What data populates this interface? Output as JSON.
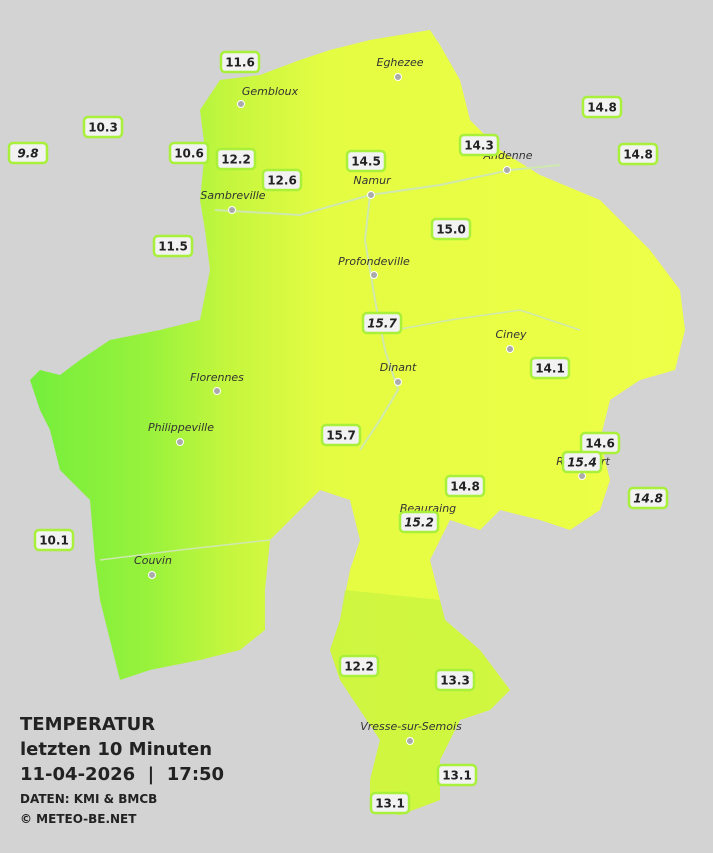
{
  "legend": {
    "title": "TEMPERATUR",
    "subtitle": "letzten 10 Minuten",
    "datetime": "11-04-2026  |  17:50",
    "source": "DATEN: KMI & BMCB",
    "credit": "© METEO-BE.NET"
  },
  "cities": [
    "Eghezee",
    "Gembloux",
    "Andenne",
    "Namur",
    "Sambreville",
    "Profondeville",
    "Ciney",
    "Dinant",
    "Florennes",
    "Philippeville",
    "Rochefort",
    "Beauraing",
    "Couvin",
    "Vresse-sur-Semois"
  ],
  "stations": [
    {
      "label": "11.6",
      "italic": false
    },
    {
      "label": "10.3",
      "italic": false
    },
    {
      "label": "9.8",
      "italic": true
    },
    {
      "label": "10.6",
      "italic": false
    },
    {
      "label": "12.2",
      "italic": false
    },
    {
      "label": "12.6",
      "italic": false
    },
    {
      "label": "14.5",
      "italic": false
    },
    {
      "label": "14.3",
      "italic": false
    },
    {
      "label": "14.8",
      "italic": false
    },
    {
      "label": "14.8",
      "italic": false
    },
    {
      "label": "11.5",
      "italic": false
    },
    {
      "label": "15.0",
      "italic": false
    },
    {
      "label": "15.7",
      "italic": true
    },
    {
      "label": "14.1",
      "italic": false
    },
    {
      "label": "15.7",
      "italic": false
    },
    {
      "label": "14.6",
      "italic": false
    },
    {
      "label": "15.4",
      "italic": true
    },
    {
      "label": "14.8",
      "italic": false
    },
    {
      "label": "15.2",
      "italic": true
    },
    {
      "label": "14.8",
      "italic": true
    },
    {
      "label": "10.1",
      "italic": false
    },
    {
      "label": "12.2",
      "italic": false
    },
    {
      "label": "13.3",
      "italic": false
    },
    {
      "label": "13.1",
      "italic": false
    },
    {
      "label": "13.1",
      "italic": false
    }
  ]
}
